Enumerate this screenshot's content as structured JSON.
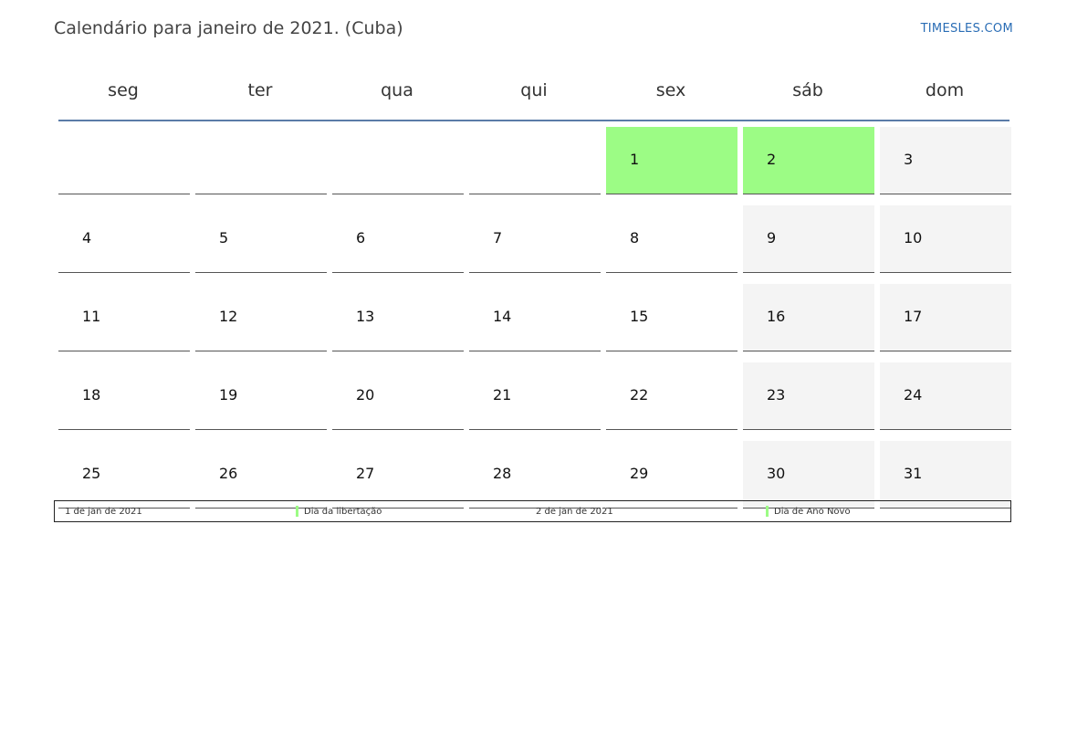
{
  "title": "Calendário para janeiro de 2021. (Cuba)",
  "site": "TIMESLES.COM",
  "colors": {
    "holiday": "#9cfc85",
    "weekend": "#f4f4f4",
    "header_line": "#5b7ca8",
    "link": "#2a6db5"
  },
  "weekdays": [
    "seg",
    "ter",
    "qua",
    "qui",
    "sex",
    "sáb",
    "dom"
  ],
  "weeks": [
    [
      "",
      "",
      "",
      "",
      "1",
      "2",
      "3"
    ],
    [
      "4",
      "5",
      "6",
      "7",
      "8",
      "9",
      "10"
    ],
    [
      "11",
      "12",
      "13",
      "14",
      "15",
      "16",
      "17"
    ],
    [
      "18",
      "19",
      "20",
      "21",
      "22",
      "23",
      "24"
    ],
    [
      "25",
      "26",
      "27",
      "28",
      "29",
      "30",
      "31"
    ]
  ],
  "holidays": [
    "1",
    "2"
  ],
  "legend": [
    {
      "date": "1 de jan de 2021",
      "name": "Dia da libertação"
    },
    {
      "date": "2 de jan de 2021",
      "name": "Dia de Ano Novo"
    }
  ]
}
